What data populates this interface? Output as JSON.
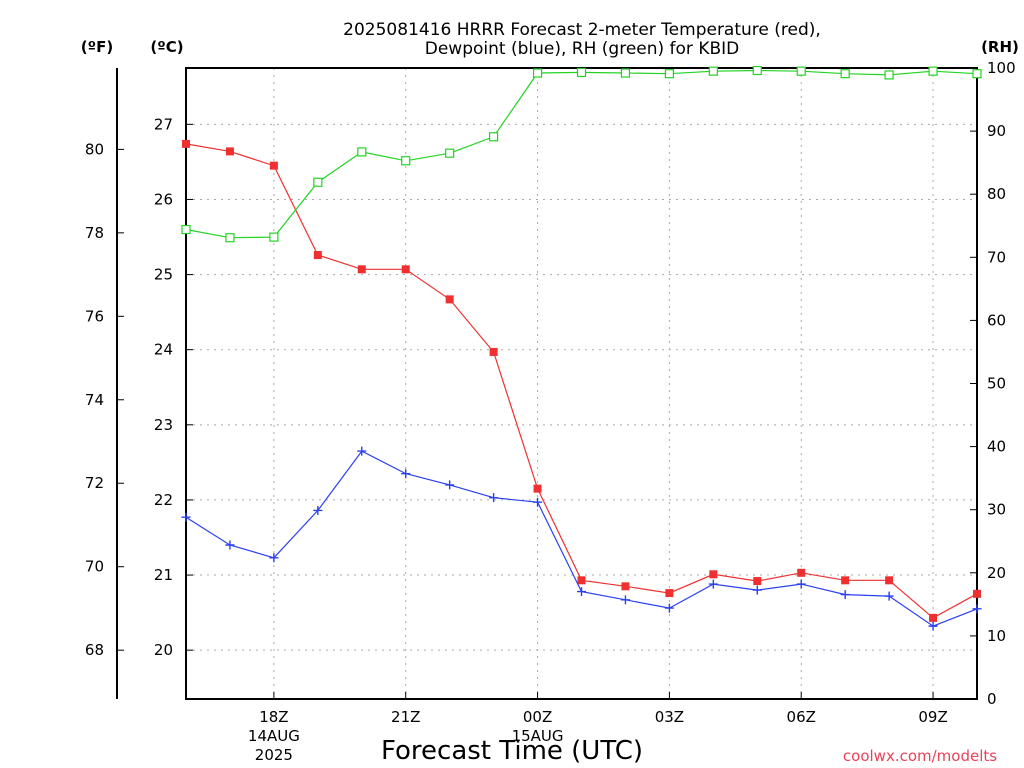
{
  "title_lines": [
    "2025081416 HRRR Forecast 2-meter Temperature (red),",
    "Dewpoint (blue), RH (green) for KBID"
  ],
  "units": {
    "fahrenheit": "(ºF)",
    "celsius": "(ºC)",
    "rh": "(RH)"
  },
  "xlabel": "Forecast Time (UTC)",
  "credit": "coolwx.com/modelts",
  "colors": {
    "temperature": "#f03030",
    "dewpoint": "#2a40f0",
    "rh": "#22d422",
    "grid": "#aaaaaa",
    "credit": "#e8425a"
  },
  "chart_data": {
    "type": "line",
    "x_hours_from_start": [
      0,
      1,
      2,
      3,
      4,
      5,
      6,
      7,
      8,
      9,
      10,
      11,
      12,
      13,
      14,
      15,
      16,
      17,
      18
    ],
    "x_ticks": [
      {
        "hour": 2,
        "label": "18Z"
      },
      {
        "hour": 5,
        "label": "21Z"
      },
      {
        "hour": 8,
        "label": "00Z"
      },
      {
        "hour": 11,
        "label": "03Z"
      },
      {
        "hour": 14,
        "label": "06Z"
      },
      {
        "hour": 17,
        "label": "09Z"
      }
    ],
    "date_labels": [
      {
        "hour": 2,
        "lines": [
          "14AUG",
          "2025"
        ]
      },
      {
        "hour": 8,
        "lines": [
          "15AUG"
        ]
      }
    ],
    "xlim": [
      0,
      18
    ],
    "celsius_axis": {
      "lim": [
        19.35,
        27.75
      ],
      "ticks": [
        20,
        21,
        22,
        23,
        24,
        25,
        26,
        27
      ]
    },
    "fahrenheit_ticks": [
      68,
      70,
      72,
      74,
      76,
      78,
      80
    ],
    "rh_axis": {
      "lim": [
        0,
        100
      ],
      "ticks": [
        0,
        10,
        20,
        30,
        40,
        50,
        60,
        70,
        80,
        90,
        100
      ]
    },
    "grid": true,
    "series": [
      {
        "name": "Temperature",
        "axis": "celsius",
        "marker": "filled-square",
        "values": [
          26.74,
          26.64,
          26.45,
          25.26,
          25.07,
          25.07,
          24.67,
          23.97,
          22.15,
          20.93,
          20.85,
          20.76,
          21.01,
          20.92,
          21.03,
          20.93,
          20.93,
          20.43,
          20.75
        ]
      },
      {
        "name": "Dewpoint",
        "axis": "celsius",
        "marker": "plus",
        "values": [
          21.77,
          21.4,
          21.23,
          21.86,
          22.65,
          22.35,
          22.2,
          22.03,
          21.97,
          20.78,
          20.67,
          20.56,
          20.88,
          20.8,
          20.88,
          20.74,
          20.72,
          20.32,
          20.55
        ]
      },
      {
        "name": "RH",
        "axis": "rh",
        "marker": "open-square",
        "values": [
          74.4,
          73.1,
          73.2,
          81.9,
          86.7,
          85.3,
          86.5,
          89.1,
          99.2,
          99.3,
          99.2,
          99.1,
          99.5,
          99.6,
          99.5,
          99.1,
          98.9,
          99.5,
          99.1
        ]
      }
    ]
  }
}
